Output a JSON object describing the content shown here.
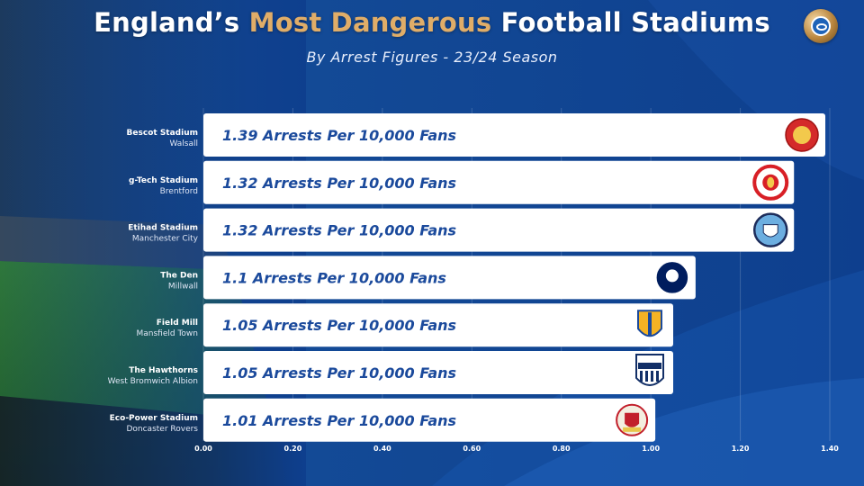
{
  "header": {
    "title_part1": "England’s ",
    "title_highlight": "Most Dangerous",
    "title_part2": " Football Stadiums",
    "subtitle": "By Arrest Figures - 23/24 Season"
  },
  "colors": {
    "background": "#0d3f8c",
    "highlight": "#e0ad68",
    "bar": "#ffffff",
    "bar_text": "#1b4a9c"
  },
  "chart_data": {
    "type": "bar",
    "orientation": "horizontal",
    "title": "England’s Most Dangerous Football Stadiums",
    "subtitle": "By Arrest Figures - 23/24 Season",
    "xlabel": "",
    "ylabel": "",
    "xlim": [
      0,
      1.4
    ],
    "xticks": [
      "0.00",
      "0.20",
      "0.40",
      "0.60",
      "0.80",
      "1.00",
      "1.20",
      "1.40"
    ],
    "grid": true,
    "categories": [
      {
        "stadium": "Bescot Stadium",
        "team": "Walsall",
        "value": 1.39,
        "label": "1.39 Arrests Per 10,000 Fans",
        "badge": "walsall-crest-icon"
      },
      {
        "stadium": "g-Tech Stadium",
        "team": "Brentford",
        "value": 1.32,
        "label": "1.32 Arrests Per 10,000 Fans",
        "badge": "brentford-crest-icon"
      },
      {
        "stadium": "Etihad Stadium",
        "team": "Manchester City",
        "value": 1.32,
        "label": "1.32 Arrests Per 10,000 Fans",
        "badge": "manchester-city-crest-icon"
      },
      {
        "stadium": "The Den",
        "team": "Millwall",
        "value": 1.1,
        "label": "1.1 Arrests Per 10,000 Fans",
        "badge": "millwall-crest-icon"
      },
      {
        "stadium": "Field Mill",
        "team": "Mansfield Town",
        "value": 1.05,
        "label": "1.05 Arrests Per 10,000 Fans",
        "badge": "mansfield-crest-icon"
      },
      {
        "stadium": "The Hawthorns",
        "team": "West Bromwich Albion",
        "value": 1.05,
        "label": "1.05 Arrests Per 10,000 Fans",
        "badge": "west-brom-crest-icon"
      },
      {
        "stadium": "Eco-Power Stadium",
        "team": "Doncaster Rovers",
        "value": 1.01,
        "label": "1.01 Arrests Per 10,000 Fans",
        "badge": "doncaster-crest-icon"
      }
    ]
  }
}
